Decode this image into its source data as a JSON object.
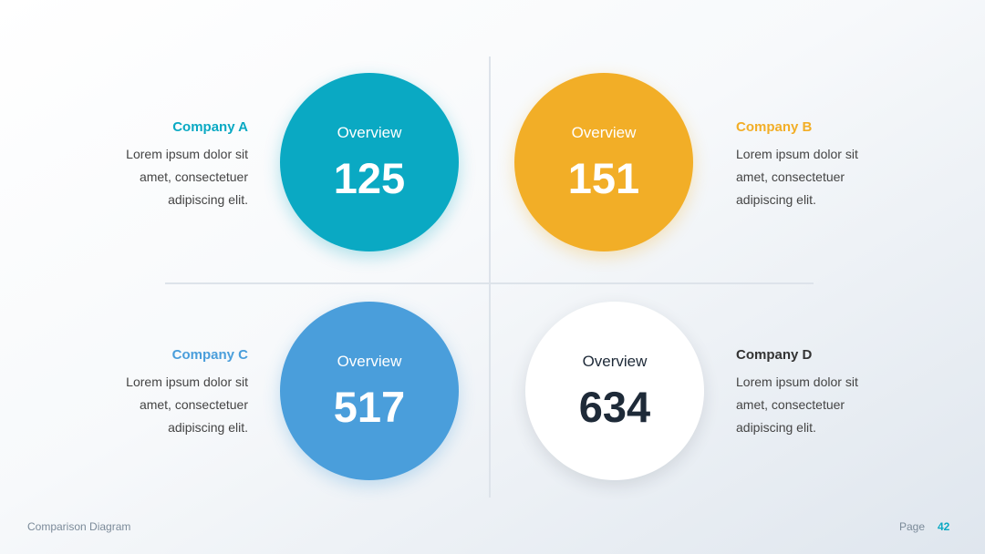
{
  "quadrants": [
    {
      "company": "Company A",
      "description": [
        "Lorem ipsum dolor sit",
        "amet, consectetuer",
        "adipiscing elit."
      ],
      "label": "Overview",
      "value": 125
    },
    {
      "company": "Company B",
      "description": [
        "Lorem ipsum dolor sit",
        "amet, consectetuer",
        "adipiscing elit."
      ],
      "label": "Overview",
      "value": 151
    },
    {
      "company": "Company C",
      "description": [
        "Lorem ipsum dolor sit",
        "amet, consectetuer",
        "adipiscing elit."
      ],
      "label": "Overview",
      "value": 517
    },
    {
      "company": "Company D",
      "description": [
        "Lorem ipsum dolor sit",
        "amet, consectetuer",
        "adipiscing elit."
      ],
      "label": "Overview",
      "value": 634
    }
  ],
  "footer": {
    "title": "Comparison Diagram",
    "page_label": "Page",
    "page_number": 42
  }
}
